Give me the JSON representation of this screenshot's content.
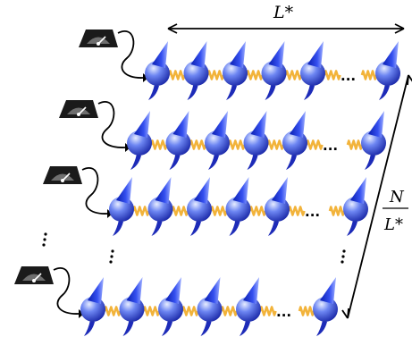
{
  "labels": {
    "top_length": "L*",
    "side_numerator": "N",
    "side_denominator": "L*",
    "row_ellipsis": "...",
    "column_ellipsis": "..."
  },
  "rows": [
    {
      "name": "row-1",
      "spins_left": 5,
      "spins_right": 1
    },
    {
      "name": "row-2",
      "spins_left": 5,
      "spins_right": 1
    },
    {
      "name": "row-3",
      "spins_left": 5,
      "spins_right": 1
    },
    {
      "name": "row-4",
      "spins_left": 5,
      "spins_right": 1
    }
  ],
  "colors": {
    "spin_light": "#d8e4ff",
    "spin_mid": "#5b78f0",
    "spin_dark": "#1d2bb8",
    "arrow": "#1230d8",
    "spring": "#f2b33a",
    "meter_body": "#1a1a1a",
    "meter_face": "#6e6e6e",
    "line": "#000000"
  },
  "icons": {
    "meter": "measurement-meter-icon",
    "spin": "spin-particle-icon",
    "spring": "spring-coupling-icon"
  }
}
